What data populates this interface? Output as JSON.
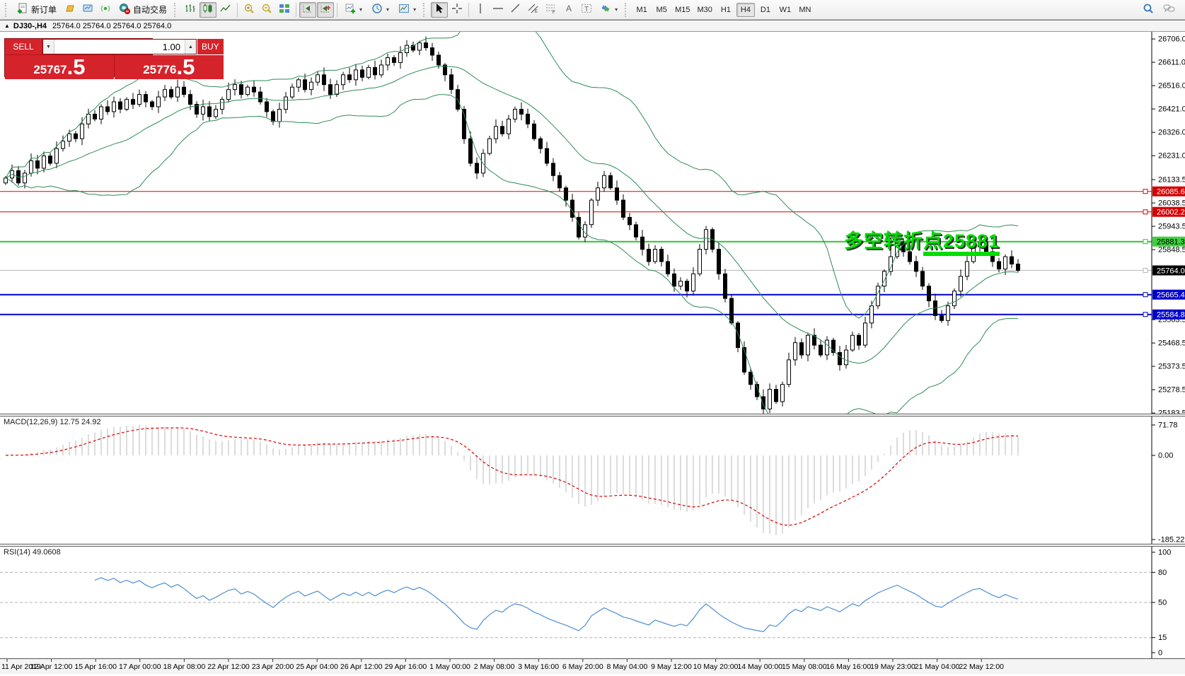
{
  "toolbar": {
    "new_order_label": "新订单",
    "autotrading_label": "自动交易",
    "timeframes": [
      "M1",
      "M5",
      "M15",
      "M30",
      "H1",
      "H4",
      "D1",
      "W1",
      "MN"
    ],
    "active_timeframe": "H4"
  },
  "title": {
    "symbol_period": "DJ30-,H4",
    "ohlc": "25764.0 25764.0 25764.0 25764.0"
  },
  "trade_panel": {
    "sell_label": "SELL",
    "buy_label": "BUY",
    "volume": "1.00",
    "sell_price_main": "25767",
    "sell_price_frac": ".5",
    "buy_price_main": "25776",
    "buy_price_frac": ".5"
  },
  "annotation": {
    "text_main": "多空转折",
    "text_underline": "点25881",
    "color": "#00dc00"
  },
  "macd": {
    "label": "MACD(12,26,9) 12.75 24.92"
  },
  "rsi": {
    "label": "RSI(14) 49.0608"
  },
  "chart_data": {
    "type": "candlestick",
    "symbol": "DJ30-",
    "timeframe": "H4",
    "ylim": [
      25181,
      26735
    ],
    "y_ticks": [
      26706.0,
      26611.0,
      26516.0,
      26421.0,
      26326.0,
      26231.0,
      26133.5,
      26038.5,
      25943.5,
      25848.5,
      25563.5,
      25468.5,
      25373.5,
      25278.5,
      25183.5
    ],
    "levels": [
      {
        "value": 26085.6,
        "label": "26085.6",
        "line": "#e00000",
        "lw": 1,
        "bg": "#d40000",
        "fg": "#ffffff"
      },
      {
        "value": 26002.2,
        "label": "26002.2",
        "line": "#e00000",
        "lw": 1,
        "bg": "#d40000",
        "fg": "#ffffff"
      },
      {
        "value": 25881.3,
        "label": "25881.3",
        "line": "#2fc42f",
        "lw": 2,
        "bg": "#3ecf3e",
        "fg": "#000000"
      },
      {
        "value": 25764.0,
        "label": "25764.0",
        "line": "#b4b4b4",
        "lw": 1,
        "bg": "#000000",
        "fg": "#ffffff"
      },
      {
        "value": 25665.4,
        "label": "25665.4",
        "line": "#0000c8",
        "lw": 2,
        "bg": "#0000cc",
        "fg": "#ffffff"
      },
      {
        "value": 25584.8,
        "label": "25584.8",
        "line": "#0000c8",
        "lw": 2,
        "bg": "#0000cc",
        "fg": "#ffffff"
      }
    ],
    "closes": [
      26140,
      26170,
      26120,
      26160,
      26210,
      26180,
      26230,
      26200,
      26260,
      26290,
      26320,
      26300,
      26360,
      26400,
      26380,
      26430,
      26410,
      26450,
      26420,
      26460,
      26440,
      26480,
      26450,
      26430,
      26470,
      26500,
      26470,
      26510,
      26480,
      26440,
      26400,
      26430,
      26390,
      26420,
      26460,
      26500,
      26520,
      26480,
      26510,
      26490,
      26450,
      26410,
      26370,
      26420,
      26470,
      26510,
      26540,
      26500,
      26530,
      26560,
      26520,
      26480,
      26520,
      26560,
      26540,
      26580,
      26550,
      26590,
      26560,
      26600,
      26630,
      26610,
      26650,
      26680,
      26660,
      26690,
      26670,
      26640,
      26600,
      26560,
      26500,
      26420,
      26300,
      26200,
      26160,
      26240,
      26300,
      26350,
      26320,
      26380,
      26420,
      26400,
      26360,
      26300,
      26260,
      26200,
      26150,
      26100,
      26050,
      25980,
      25900,
      25950,
      26050,
      26100,
      26150,
      26100,
      26050,
      25980,
      25950,
      25900,
      25850,
      25800,
      25850,
      25800,
      25750,
      25700,
      25720,
      25680,
      25750,
      25850,
      25930,
      25850,
      25750,
      25650,
      25550,
      25450,
      25350,
      25300,
      25250,
      25200,
      25280,
      25230,
      25300,
      25400,
      25470,
      25420,
      25500,
      25460,
      25420,
      25480,
      25430,
      25380,
      25440,
      25500,
      25460,
      25550,
      25620,
      25700,
      25760,
      25820,
      25880,
      25840,
      25800,
      25760,
      25700,
      25640,
      25580,
      25560,
      25620,
      25680,
      25740,
      25800,
      25860,
      25880,
      25840,
      25800,
      25770,
      25820,
      25790,
      25764
    ],
    "bollinger": {
      "period": 20,
      "deviation": 2,
      "color": "#2e8b57"
    },
    "macd": {
      "fast": 12,
      "slow": 26,
      "signal": 9,
      "current_main": "12.75",
      "current_signal": "24.92",
      "axis_labels": [
        "71.78",
        "0.00",
        "-185.22"
      ]
    },
    "rsi": {
      "period": 14,
      "current": "49.0608",
      "axis_labels": [
        100,
        80,
        50,
        15,
        0
      ],
      "level_lines": [
        80,
        50,
        15
      ]
    },
    "x_labels": [
      "11 Apr 2019",
      "12 Apr 12:00",
      "15 Apr 16:00",
      "17 Apr 00:00",
      "18 Apr 08:00",
      "22 Apr 12:00",
      "23 Apr 20:00",
      "25 Apr 04:00",
      "26 Apr 12:00",
      "29 Apr 16:00",
      "1 May 00:00",
      "2 May 08:00",
      "3 May 16:00",
      "6 May 20:00",
      "8 May 04:00",
      "9 May 12:00",
      "10 May 20:00",
      "14 May 00:00",
      "15 May 08:00",
      "16 May 16:00",
      "19 May 23:00",
      "21 May 04:00",
      "22 May 12:00"
    ]
  }
}
